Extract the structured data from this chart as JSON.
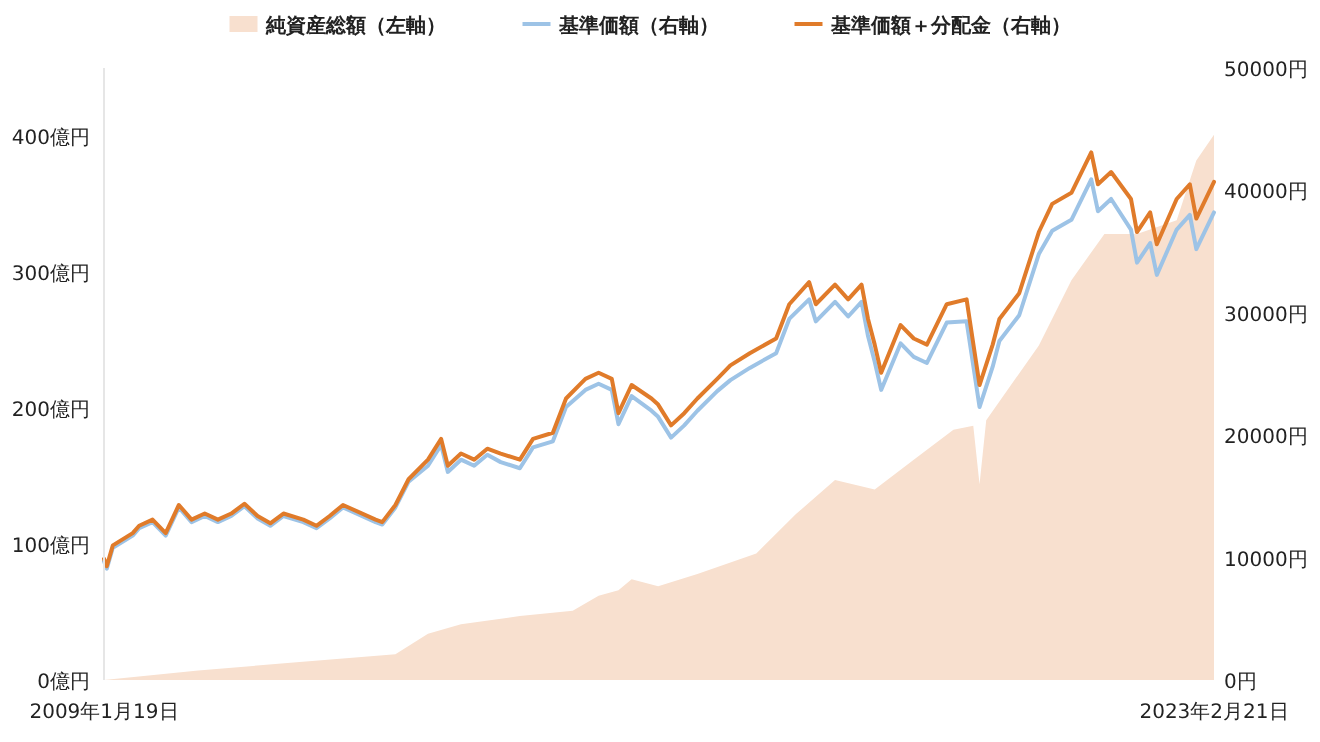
{
  "chart_data": {
    "type": "line",
    "legend": "top",
    "grid": false,
    "xlim": [
      "2009-01-19",
      "2023-02-21"
    ],
    "xticks": [
      {
        "value": "2009-01-19",
        "label": "2009年1月19日"
      },
      {
        "value": "2023-02-21",
        "label": "2023年2月21日"
      }
    ],
    "ylim": [
      0,
      450
    ],
    "yticks": [
      {
        "value": 0,
        "label": "0億円"
      },
      {
        "value": 100,
        "label": "100億円"
      },
      {
        "value": 200,
        "label": "200億円"
      },
      {
        "value": 300,
        "label": "300億円"
      },
      {
        "value": 400,
        "label": "400億円"
      }
    ],
    "y2lim": [
      0,
      50000
    ],
    "y2ticks": [
      {
        "value": 0,
        "label": "0円"
      },
      {
        "value": 10000,
        "label": "10000円"
      },
      {
        "value": 20000,
        "label": "20000円"
      },
      {
        "value": 30000,
        "label": "30000円"
      },
      {
        "value": 40000,
        "label": "40000円"
      },
      {
        "value": 50000,
        "label": "50000円"
      }
    ],
    "series": [
      {
        "name": "純資産総額（左軸）",
        "type": "area",
        "axis": "y",
        "color": "#f8e0cf",
        "x": [
          "2009-01-19",
          "2010-04",
          "2011-07",
          "2012-10",
          "2013-03",
          "2013-08",
          "2014-05",
          "2015-01",
          "2015-05",
          "2015-08",
          "2015-10",
          "2016-02",
          "2016-08",
          "2017-05",
          "2017-11",
          "2018-05",
          "2018-11",
          "2019-05",
          "2019-11",
          "2020-02",
          "2020-03",
          "2020-04",
          "2020-12",
          "2021-05",
          "2021-10",
          "2022-03",
          "2022-09",
          "2022-12",
          "2023-02-21"
        ],
        "values": [
          0,
          7,
          13,
          19,
          34,
          41,
          47,
          51,
          62,
          66,
          74,
          69,
          78,
          93,
          122,
          147,
          140,
          162,
          184,
          187,
          144,
          191,
          246,
          294,
          328,
          328,
          338,
          382,
          401
        ]
      },
      {
        "name": "基準価額（右軸）",
        "type": "line",
        "axis": "y2",
        "color": "#9dc3e6",
        "x": [
          "2009-01-19",
          "2009-02",
          "2009-03",
          "2009-06",
          "2009-07",
          "2009-09",
          "2009-11",
          "2010-01",
          "2010-03",
          "2010-05",
          "2010-07",
          "2010-09",
          "2010-11",
          "2011-01",
          "2011-03",
          "2011-05",
          "2011-08",
          "2011-10",
          "2011-12",
          "2012-02",
          "2012-07",
          "2012-08",
          "2012-10",
          "2012-12",
          "2013-03",
          "2013-05",
          "2013-06",
          "2013-08",
          "2013-10",
          "2013-12",
          "2014-02",
          "2014-05",
          "2014-07",
          "2014-10",
          "2014-12",
          "2015-03",
          "2015-05",
          "2015-07",
          "2015-08",
          "2015-10",
          "2016-01",
          "2016-02",
          "2016-04",
          "2016-06",
          "2016-08",
          "2016-11",
          "2017-01",
          "2017-04",
          "2017-08",
          "2017-10",
          "2018-01",
          "2018-02",
          "2018-05",
          "2018-07",
          "2018-09",
          "2018-10",
          "2018-11",
          "2018-12",
          "2019-03",
          "2019-05",
          "2019-07",
          "2019-10",
          "2020-01",
          "2020-03",
          "2020-05",
          "2020-06",
          "2020-09",
          "2020-12",
          "2021-02",
          "2021-05",
          "2021-08",
          "2021-09",
          "2021-11",
          "2022-02",
          "2022-03",
          "2022-05",
          "2022-06",
          "2022-09",
          "2022-11",
          "2022-12",
          "2023-02-21"
        ],
        "values": [
          9700,
          9100,
          10800,
          11800,
          12400,
          12900,
          11800,
          14100,
          12900,
          13400,
          12900,
          13400,
          14200,
          13200,
          12600,
          13400,
          12900,
          12400,
          13200,
          14100,
          12900,
          12700,
          14100,
          16200,
          17500,
          19200,
          17000,
          18000,
          17500,
          18400,
          17800,
          17300,
          19000,
          19500,
          22300,
          23700,
          24200,
          23700,
          20900,
          23200,
          22000,
          21500,
          19800,
          20800,
          22000,
          23600,
          24500,
          25500,
          26700,
          29500,
          31100,
          29300,
          30900,
          29700,
          30900,
          28100,
          26000,
          23700,
          27500,
          26400,
          25900,
          29200,
          29300,
          22300,
          25600,
          27700,
          29800,
          34800,
          36700,
          37600,
          40900,
          38300,
          39300,
          36800,
          34100,
          35700,
          33100,
          36800,
          38000,
          35200,
          38200
        ]
      },
      {
        "name": "基準価額＋分配金（右軸）",
        "type": "line",
        "axis": "y2",
        "color": "#e07b2a",
        "x": [
          "2009-01-19",
          "2009-02",
          "2009-03",
          "2009-06",
          "2009-07",
          "2009-09",
          "2009-11",
          "2010-01",
          "2010-03",
          "2010-05",
          "2010-07",
          "2010-09",
          "2010-11",
          "2011-01",
          "2011-03",
          "2011-05",
          "2011-08",
          "2011-10",
          "2011-12",
          "2012-02",
          "2012-07",
          "2012-08",
          "2012-10",
          "2012-12",
          "2013-03",
          "2013-05",
          "2013-06",
          "2013-08",
          "2013-10",
          "2013-12",
          "2014-02",
          "2014-05",
          "2014-07",
          "2014-10",
          "2014-12",
          "2015-03",
          "2015-05",
          "2015-07",
          "2015-08",
          "2015-10",
          "2016-01",
          "2016-02",
          "2016-04",
          "2016-06",
          "2016-08",
          "2016-11",
          "2017-01",
          "2017-04",
          "2017-08",
          "2017-10",
          "2018-01",
          "2018-02",
          "2018-05",
          "2018-07",
          "2018-09",
          "2018-10",
          "2018-11",
          "2018-12",
          "2019-03",
          "2019-05",
          "2019-07",
          "2019-10",
          "2020-01",
          "2020-03",
          "2020-05",
          "2020-06",
          "2020-09",
          "2020-12",
          "2021-02",
          "2021-05",
          "2021-08",
          "2021-09",
          "2021-11",
          "2022-02",
          "2022-03",
          "2022-05",
          "2022-06",
          "2022-09",
          "2022-11",
          "2022-12",
          "2023-02-21"
        ],
        "values": [
          9900,
          9300,
          11000,
          12000,
          12600,
          13100,
          12000,
          14300,
          13100,
          13600,
          13100,
          13600,
          14400,
          13400,
          12800,
          13600,
          13100,
          12600,
          13400,
          14300,
          13100,
          12900,
          14300,
          16400,
          18000,
          19700,
          17500,
          18500,
          18000,
          18900,
          18500,
          18000,
          19700,
          20200,
          23000,
          24600,
          25100,
          24600,
          21800,
          24100,
          23000,
          22500,
          20800,
          21800,
          23000,
          24600,
          25700,
          26700,
          27900,
          30700,
          32500,
          30700,
          32300,
          31100,
          32300,
          29500,
          27400,
          25100,
          29000,
          27900,
          27400,
          30700,
          31100,
          24100,
          27400,
          29500,
          31600,
          36600,
          38900,
          39800,
          43100,
          40500,
          41500,
          39300,
          36600,
          38200,
          35600,
          39300,
          40500,
          37700,
          40700
        ]
      }
    ]
  }
}
